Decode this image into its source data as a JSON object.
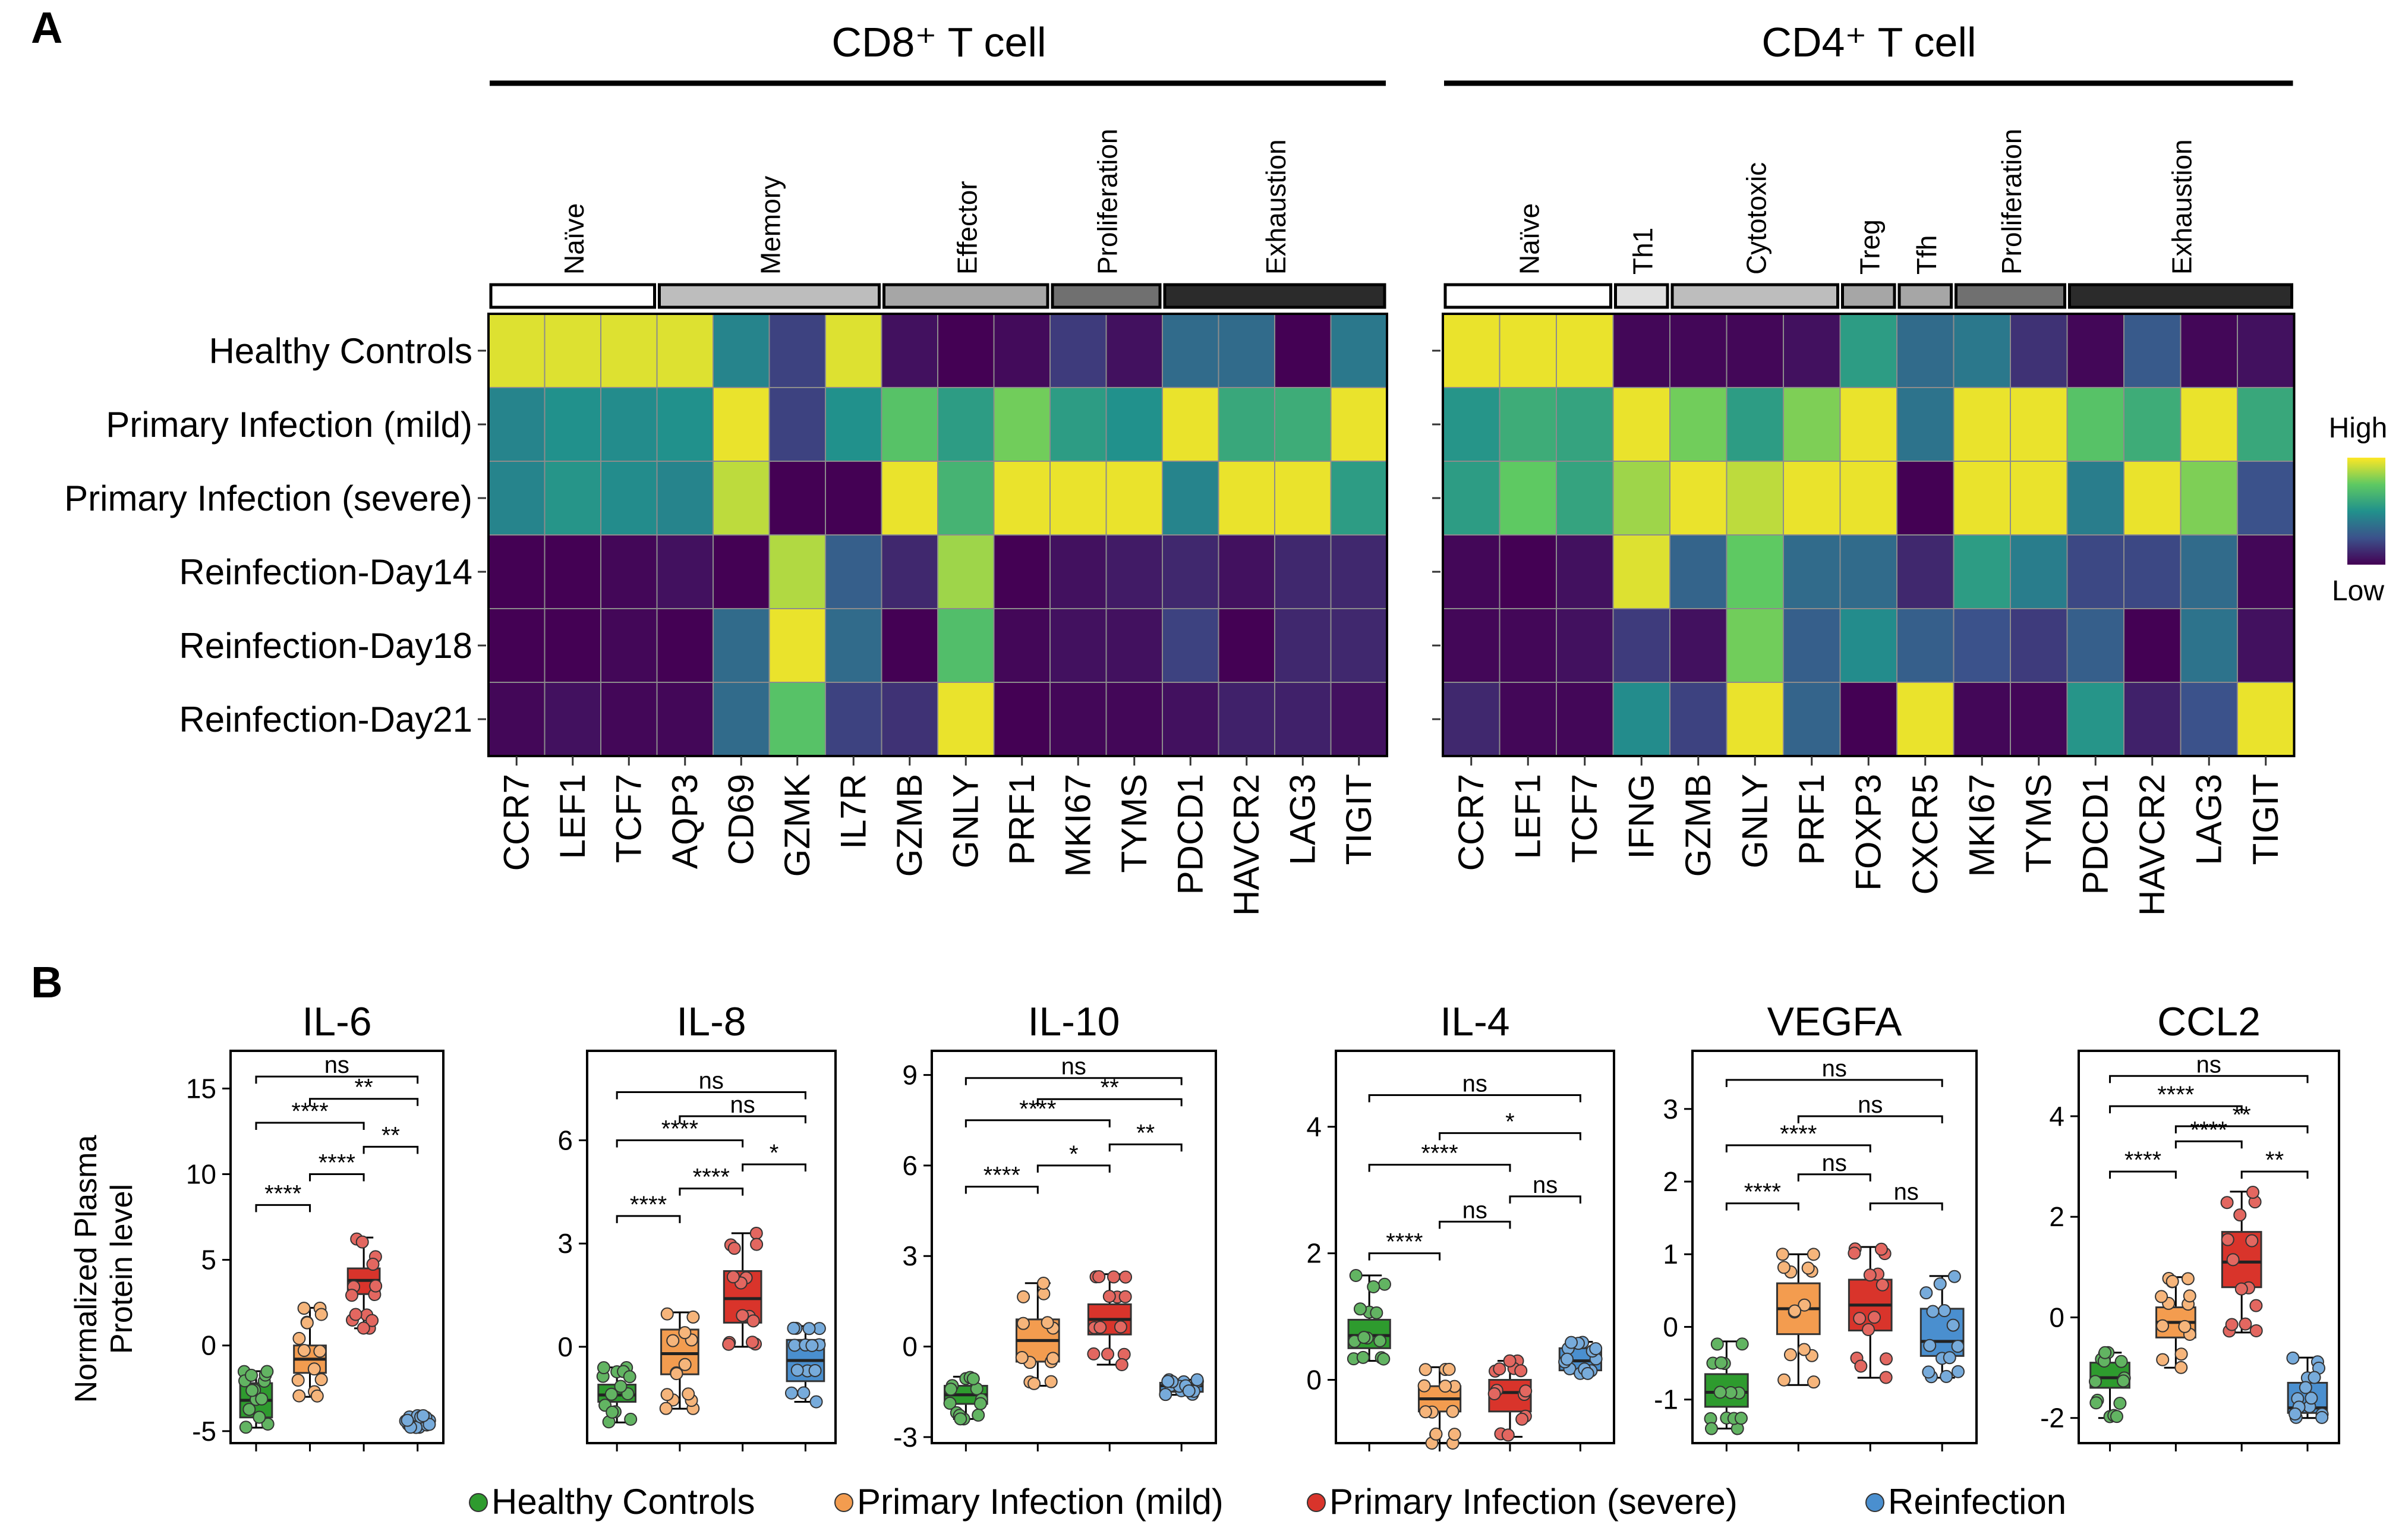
{
  "panel_a_label": "A",
  "panel_b_label": "B",
  "colorbar": {
    "high_label": "High",
    "low_label": "Low",
    "colors": [
      "#440154",
      "#3b528b",
      "#21918c",
      "#5ec962",
      "#fde725"
    ]
  },
  "heatmap": {
    "rows": [
      "Healthy Controls",
      "Primary Infection (mild)",
      "Primary Infection (severe)",
      "Reinfection-Day14",
      "Reinfection-Day18",
      "Reinfection-Day21"
    ],
    "cd8": {
      "title": "CD8⁺ T cell",
      "groups": [
        {
          "name": "Naïve",
          "span": 3,
          "color": "#ffffff"
        },
        {
          "name": "Memory",
          "span": 4,
          "color": "#bdbdbd"
        },
        {
          "name": "Effector",
          "span": 3,
          "color": "#a6a6a6"
        },
        {
          "name": "Proliferation",
          "span": 2,
          "color": "#707070"
        },
        {
          "name": "Exhaustion",
          "span": 4,
          "color": "#2b2b2b"
        }
      ],
      "genes": [
        "CCR7",
        "LEF1",
        "TCF7",
        "AQP3",
        "CD69",
        "GZMK",
        "IL7R",
        "GZMB",
        "GNLY",
        "PRF1",
        "MKI67",
        "TYMS",
        "PDCD1",
        "HAVCR2",
        "LAG3",
        "TIGIT"
      ],
      "values": [
        [
          0.95,
          0.95,
          0.95,
          0.95,
          0.45,
          0.2,
          0.95,
          0.05,
          0.0,
          0.03,
          0.18,
          0.05,
          0.35,
          0.35,
          0.0,
          0.4
        ],
        [
          0.45,
          0.5,
          0.48,
          0.5,
          0.97,
          0.2,
          0.5,
          0.72,
          0.55,
          0.78,
          0.55,
          0.5,
          0.97,
          0.6,
          0.62,
          0.97
        ],
        [
          0.45,
          0.52,
          0.48,
          0.45,
          0.9,
          0.0,
          0.0,
          0.97,
          0.65,
          0.97,
          0.97,
          0.97,
          0.45,
          0.97,
          0.97,
          0.55
        ],
        [
          0.0,
          0.0,
          0.02,
          0.05,
          0.0,
          0.88,
          0.3,
          0.12,
          0.85,
          0.0,
          0.05,
          0.08,
          0.12,
          0.05,
          0.12,
          0.12
        ],
        [
          0.0,
          0.0,
          0.02,
          0.0,
          0.35,
          0.97,
          0.35,
          0.0,
          0.7,
          0.02,
          0.05,
          0.05,
          0.2,
          0.0,
          0.12,
          0.12
        ],
        [
          0.02,
          0.05,
          0.02,
          0.02,
          0.35,
          0.72,
          0.2,
          0.15,
          0.97,
          0.0,
          0.02,
          0.02,
          0.05,
          0.1,
          0.1,
          0.05
        ]
      ]
    },
    "cd4": {
      "title": "CD4⁺ T cell",
      "groups": [
        {
          "name": "Naïve",
          "span": 3,
          "color": "#ffffff"
        },
        {
          "name": "Th1",
          "span": 1,
          "color": "#e0e0e0"
        },
        {
          "name": "Cytotoxic",
          "span": 3,
          "color": "#bdbdbd"
        },
        {
          "name": "Treg",
          "span": 1,
          "color": "#a6a6a6"
        },
        {
          "name": "Tfh",
          "span": 1,
          "color": "#a6a6a6"
        },
        {
          "name": "Proliferation",
          "span": 2,
          "color": "#707070"
        },
        {
          "name": "Exhaustion",
          "span": 4,
          "color": "#2b2b2b"
        }
      ],
      "genes": [
        "CCR7",
        "LEF1",
        "TCF7",
        "IFNG",
        "GZMB",
        "GNLY",
        "PRF1",
        "FOXP3",
        "CXCR5",
        "MKI67",
        "TYMS",
        "PDCD1",
        "HAVCR2",
        "LAG3",
        "TIGIT"
      ],
      "values": [
        [
          0.97,
          0.97,
          0.97,
          0.02,
          0.02,
          0.02,
          0.05,
          0.55,
          0.35,
          0.4,
          0.15,
          0.02,
          0.28,
          0.02,
          0.05
        ],
        [
          0.52,
          0.62,
          0.58,
          0.97,
          0.78,
          0.55,
          0.8,
          0.97,
          0.38,
          0.97,
          0.97,
          0.72,
          0.62,
          0.97,
          0.6
        ],
        [
          0.55,
          0.75,
          0.58,
          0.85,
          0.97,
          0.9,
          0.97,
          0.97,
          0.0,
          0.97,
          0.97,
          0.42,
          0.97,
          0.8,
          0.25
        ],
        [
          0.02,
          0.0,
          0.05,
          0.95,
          0.32,
          0.75,
          0.35,
          0.35,
          0.12,
          0.55,
          0.42,
          0.22,
          0.22,
          0.35,
          0.02
        ],
        [
          0.02,
          0.02,
          0.05,
          0.18,
          0.05,
          0.78,
          0.3,
          0.48,
          0.3,
          0.25,
          0.18,
          0.3,
          0.0,
          0.38,
          0.05
        ],
        [
          0.12,
          0.02,
          0.02,
          0.48,
          0.2,
          0.97,
          0.32,
          0.0,
          0.97,
          0.02,
          0.02,
          0.52,
          0.1,
          0.25,
          0.97
        ]
      ]
    }
  },
  "box_plots": {
    "y_title": [
      "Normalized Plasma",
      "Protein level"
    ],
    "legend": [
      {
        "label": "Healthy Controls",
        "color": "#2e9b2e"
      },
      {
        "label": "Primary Infection (mild)",
        "color": "#f39c4f"
      },
      {
        "label": "Primary Infection (severe)",
        "color": "#d9342b"
      },
      {
        "label": "Reinfection",
        "color": "#4a8fcf"
      }
    ],
    "charts": [
      {
        "title": "IL-6",
        "ylim": [
          -5.7,
          17.2
        ],
        "ticks": [
          -5,
          0,
          5,
          10,
          15
        ],
        "tick_labels": [
          "-5",
          "0",
          "5",
          "10",
          "15"
        ],
        "groups": [
          {
            "min": -4.8,
            "q1": -4.2,
            "med": -3.2,
            "q3": -2.2,
            "max": -1.5
          },
          {
            "min": -3.0,
            "q1": -1.6,
            "med": -0.8,
            "q3": 0.0,
            "max": 2.2
          },
          {
            "min": 1.0,
            "q1": 3.0,
            "med": 3.8,
            "q3": 4.5,
            "max": 6.3
          },
          {
            "min": -4.8,
            "q1": -4.6,
            "med": -4.4,
            "q3": -4.2,
            "max": -4.1
          }
        ],
        "sig": [
          {
            "a": 1,
            "b": 2,
            "label": "****",
            "y": 8.2
          },
          {
            "a": 2,
            "b": 3,
            "label": "****",
            "y": 10.0
          },
          {
            "a": 3,
            "b": 4,
            "label": "**",
            "y": 11.6
          },
          {
            "a": 1,
            "b": 3,
            "label": "****",
            "y": 13.0
          },
          {
            "a": 2,
            "b": 4,
            "label": "**",
            "y": 14.4
          },
          {
            "a": 1,
            "b": 4,
            "label": "ns",
            "y": 15.7
          }
        ]
      },
      {
        "title": "IL-8",
        "ylim": [
          -2.8,
          8.6
        ],
        "ticks": [
          0,
          3,
          6
        ],
        "tick_labels": [
          "0",
          "3",
          "6"
        ],
        "groups": [
          {
            "min": -2.2,
            "q1": -1.6,
            "med": -1.4,
            "q3": -1.1,
            "max": -0.6
          },
          {
            "min": -1.8,
            "q1": -0.8,
            "med": -0.2,
            "q3": 0.5,
            "max": 1.0
          },
          {
            "min": 0.0,
            "q1": 0.7,
            "med": 1.4,
            "q3": 2.2,
            "max": 3.3
          },
          {
            "min": -1.6,
            "q1": -1.0,
            "med": -0.4,
            "q3": 0.2,
            "max": 0.6
          }
        ],
        "sig": [
          {
            "a": 1,
            "b": 2,
            "label": "****",
            "y": 3.8
          },
          {
            "a": 2,
            "b": 3,
            "label": "****",
            "y": 4.6
          },
          {
            "a": 3,
            "b": 4,
            "label": "*",
            "y": 5.3
          },
          {
            "a": 1,
            "b": 3,
            "label": "****",
            "y": 6.0
          },
          {
            "a": 2,
            "b": 4,
            "label": "ns",
            "y": 6.7
          },
          {
            "a": 1,
            "b": 4,
            "label": "ns",
            "y": 7.4
          }
        ]
      },
      {
        "title": "IL-10",
        "ylim": [
          -3.2,
          9.8
        ],
        "ticks": [
          -3,
          0,
          3,
          6,
          9
        ],
        "tick_labels": [
          "-3",
          "0",
          "3",
          "6",
          "9"
        ],
        "groups": [
          {
            "min": -2.4,
            "q1": -1.9,
            "med": -1.6,
            "q3": -1.3,
            "max": -1.0
          },
          {
            "min": -1.3,
            "q1": -0.5,
            "med": 0.2,
            "q3": 0.9,
            "max": 2.1
          },
          {
            "min": -0.6,
            "q1": 0.4,
            "med": 0.9,
            "q3": 1.4,
            "max": 2.4
          },
          {
            "min": -1.6,
            "q1": -1.5,
            "med": -1.3,
            "q3": -1.2,
            "max": -1.1
          }
        ],
        "sig": [
          {
            "a": 1,
            "b": 2,
            "label": "****",
            "y": 5.3
          },
          {
            "a": 2,
            "b": 3,
            "label": "*",
            "y": 6.0
          },
          {
            "a": 3,
            "b": 4,
            "label": "**",
            "y": 6.7
          },
          {
            "a": 1,
            "b": 3,
            "label": "****",
            "y": 7.5
          },
          {
            "a": 2,
            "b": 4,
            "label": "**",
            "y": 8.2
          },
          {
            "a": 1,
            "b": 4,
            "label": "ns",
            "y": 8.9
          }
        ]
      },
      {
        "title": "IL-4",
        "ylim": [
          -1.0,
          5.2
        ],
        "ticks": [
          0,
          2,
          4
        ],
        "tick_labels": [
          "0",
          "2",
          "4"
        ],
        "groups": [
          {
            "min": 0.3,
            "q1": 0.5,
            "med": 0.7,
            "q3": 0.95,
            "max": 1.65
          },
          {
            "min": -1.0,
            "q1": -0.5,
            "med": -0.3,
            "q3": -0.1,
            "max": 0.2
          },
          {
            "min": -0.9,
            "q1": -0.5,
            "med": -0.2,
            "q3": 0.0,
            "max": 0.3
          },
          {
            "min": 0.1,
            "q1": 0.15,
            "med": 0.3,
            "q3": 0.5,
            "max": 0.6
          }
        ],
        "sig": [
          {
            "a": 1,
            "b": 2,
            "label": "****",
            "y": 2.0
          },
          {
            "a": 2,
            "b": 3,
            "label": "ns",
            "y": 2.5
          },
          {
            "a": 3,
            "b": 4,
            "label": "ns",
            "y": 2.9
          },
          {
            "a": 1,
            "b": 3,
            "label": "****",
            "y": 3.4
          },
          {
            "a": 2,
            "b": 4,
            "label": "*",
            "y": 3.9
          },
          {
            "a": 1,
            "b": 4,
            "label": "ns",
            "y": 4.5
          }
        ]
      },
      {
        "title": "VEGFA",
        "ylim": [
          -1.6,
          3.8
        ],
        "ticks": [
          -1,
          0,
          1,
          2,
          3
        ],
        "tick_labels": [
          "-1",
          "0",
          "1",
          "2",
          "3"
        ],
        "groups": [
          {
            "min": -1.4,
            "q1": -1.1,
            "med": -0.9,
            "q3": -0.65,
            "max": -0.2
          },
          {
            "min": -0.8,
            "q1": -0.1,
            "med": 0.25,
            "q3": 0.6,
            "max": 1.0
          },
          {
            "min": -0.7,
            "q1": -0.05,
            "med": 0.3,
            "q3": 0.65,
            "max": 1.1
          },
          {
            "min": -0.7,
            "q1": -0.4,
            "med": -0.2,
            "q3": 0.25,
            "max": 0.7
          }
        ],
        "sig": [
          {
            "a": 1,
            "b": 2,
            "label": "****",
            "y": 1.7
          },
          {
            "a": 2,
            "b": 3,
            "label": "ns",
            "y": 2.1
          },
          {
            "a": 3,
            "b": 4,
            "label": "ns",
            "y": 1.7
          },
          {
            "a": 1,
            "b": 3,
            "label": "****",
            "y": 2.5
          },
          {
            "a": 2,
            "b": 4,
            "label": "ns",
            "y": 2.9
          },
          {
            "a": 1,
            "b": 4,
            "label": "ns",
            "y": 3.4
          }
        ]
      },
      {
        "title": "CCL2",
        "ylim": [
          -2.5,
          5.3
        ],
        "ticks": [
          -2,
          0,
          2,
          4
        ],
        "tick_labels": [
          "-2",
          "0",
          "2",
          "4"
        ],
        "groups": [
          {
            "min": -2.0,
            "q1": -1.4,
            "med": -1.2,
            "q3": -0.9,
            "max": -0.7
          },
          {
            "min": -1.0,
            "q1": -0.4,
            "med": -0.1,
            "q3": 0.2,
            "max": 0.8
          },
          {
            "min": -0.3,
            "q1": 0.6,
            "med": 1.1,
            "q3": 1.7,
            "max": 2.5
          },
          {
            "min": -2.0,
            "q1": -1.9,
            "med": -1.8,
            "q3": -1.3,
            "max": -0.8
          }
        ],
        "sig": [
          {
            "a": 1,
            "b": 2,
            "label": "****",
            "y": 2.9
          },
          {
            "a": 2,
            "b": 3,
            "label": "****",
            "y": 3.5
          },
          {
            "a": 3,
            "b": 4,
            "label": "**",
            "y": 2.9
          },
          {
            "a": 1,
            "b": 3,
            "label": "****",
            "y": 4.2
          },
          {
            "a": 2,
            "b": 4,
            "label": "**",
            "y": 3.8
          },
          {
            "a": 1,
            "b": 4,
            "label": "ns",
            "y": 4.8
          }
        ]
      }
    ]
  }
}
